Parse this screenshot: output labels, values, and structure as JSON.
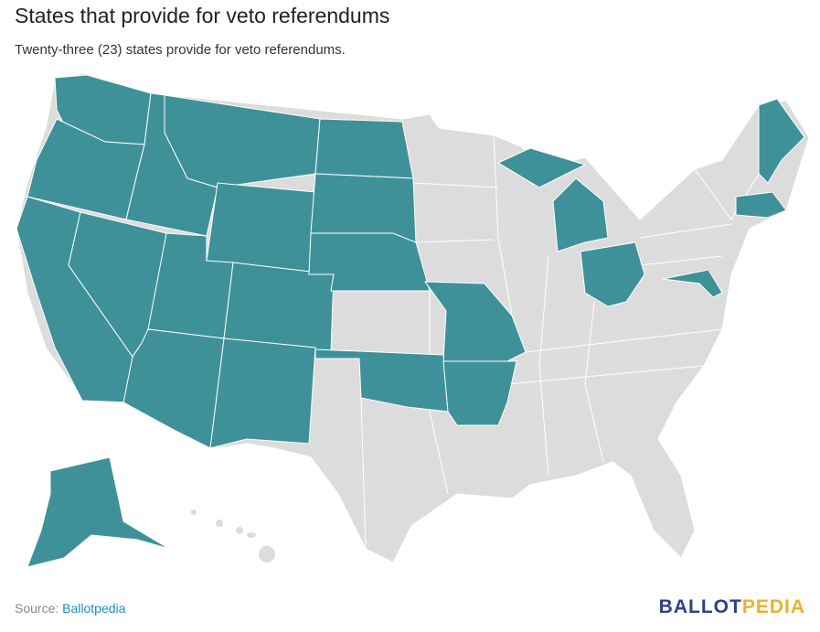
{
  "header": {
    "title": "States that provide for veto referendums",
    "subtitle": "Twenty-three (23) states provide for veto referendums."
  },
  "footer": {
    "source_label": "Source:",
    "source_link": "Ballotpedia",
    "logo": [
      "BALLOT",
      "PEDIA"
    ]
  }
}
